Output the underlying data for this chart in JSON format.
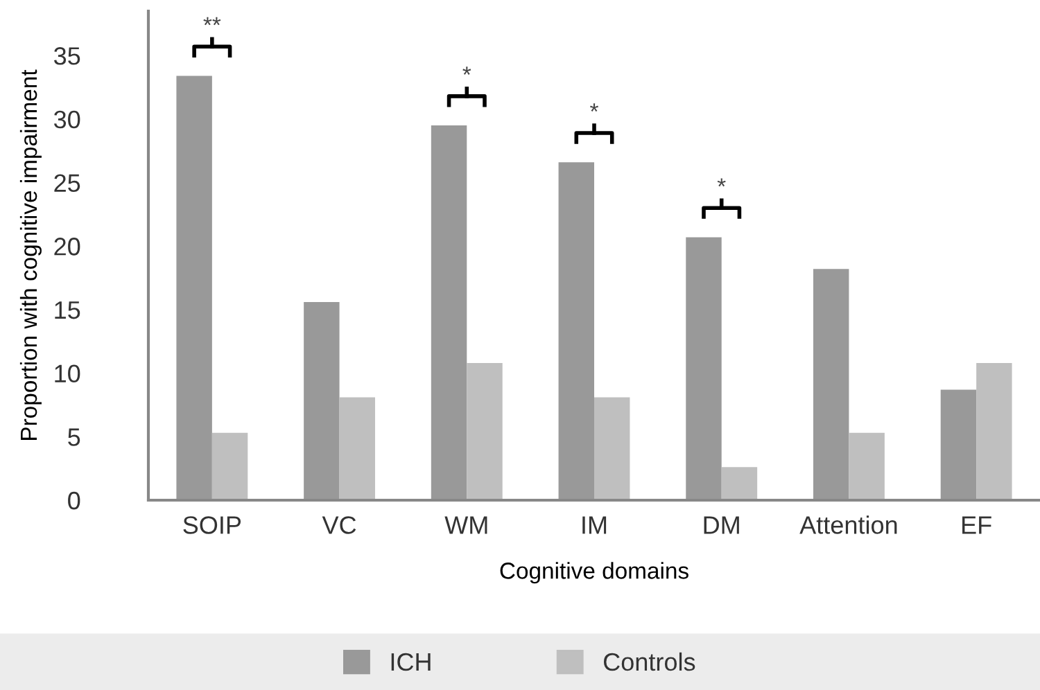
{
  "chart_data": {
    "type": "bar",
    "xlabel": "Cognitive domains",
    "ylabel": "Proportion with cognitive impairment",
    "categories": [
      "SOIP",
      "VC",
      "WM",
      "IM",
      "DM",
      "Attention",
      "EF"
    ],
    "series": [
      {
        "name": "ICH",
        "color": "#999999",
        "values": [
          33.4,
          15.6,
          29.5,
          26.6,
          20.7,
          18.2,
          8.7
        ]
      },
      {
        "name": "Controls",
        "color": "#bfbfbf",
        "values": [
          5.3,
          8.1,
          10.8,
          8.1,
          2.6,
          5.3,
          10.8
        ]
      }
    ],
    "ylim": [
      0,
      38.5
    ],
    "yticks": [
      0,
      5,
      10,
      15,
      20,
      25,
      30,
      35
    ],
    "grid": false,
    "legend": "bottom",
    "annotations": [
      "**",
      "*",
      "*",
      "*"
    ]
  }
}
